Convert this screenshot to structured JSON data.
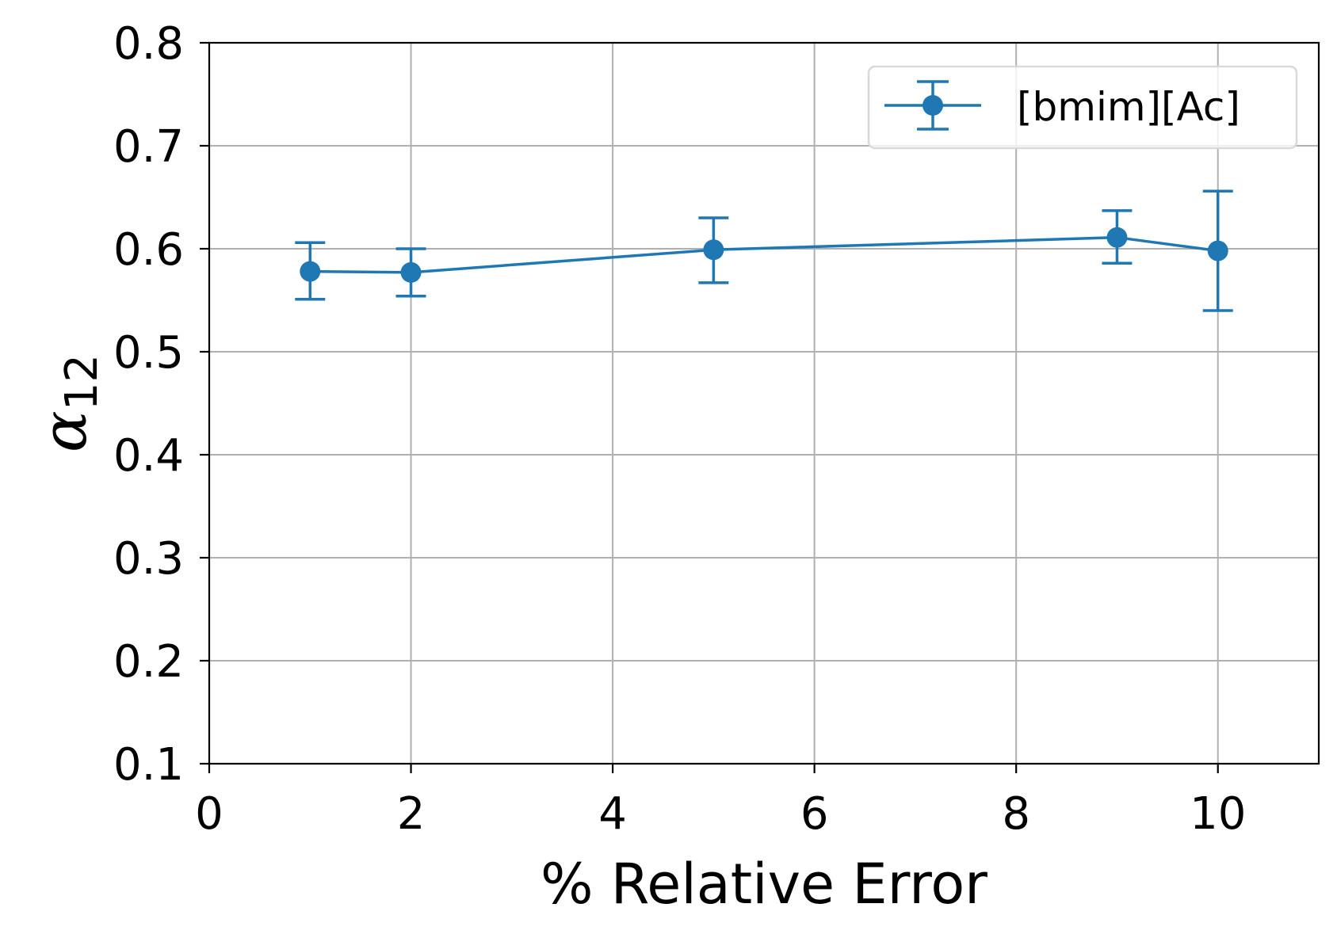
{
  "chart_data": {
    "type": "line",
    "xlabel": "% Relative Error",
    "ylabel": "α",
    "ylabel_subscript": "12",
    "xlim": [
      0,
      11
    ],
    "ylim": [
      0.1,
      0.8
    ],
    "x_ticks": [
      0,
      2,
      4,
      6,
      8,
      10
    ],
    "x_tick_labels": [
      "0",
      "2",
      "4",
      "6",
      "8",
      "10"
    ],
    "y_ticks": [
      0.1,
      0.2,
      0.3,
      0.4,
      0.5,
      0.6,
      0.7,
      0.8
    ],
    "y_tick_labels": [
      "0.1",
      "0.2",
      "0.3",
      "0.4",
      "0.5",
      "0.6",
      "0.7",
      "0.8"
    ],
    "grid": true,
    "legend_position": "top-right",
    "series": [
      {
        "name": "[bmim][Ac]",
        "color": "#1f77b4",
        "x": [
          1,
          2,
          5,
          9,
          10
        ],
        "y": [
          0.578,
          0.577,
          0.599,
          0.611,
          0.598
        ],
        "err_low": [
          0.551,
          0.554,
          0.567,
          0.586,
          0.54
        ],
        "err_high": [
          0.606,
          0.6,
          0.63,
          0.637,
          0.656
        ]
      }
    ]
  }
}
